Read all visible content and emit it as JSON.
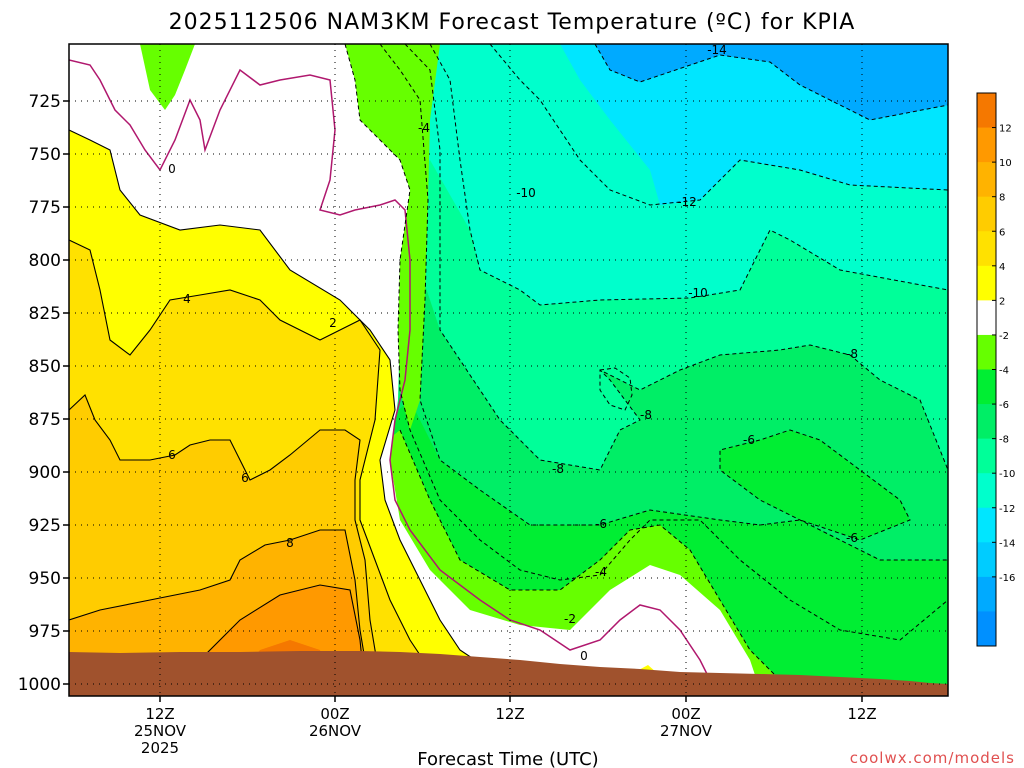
{
  "chart_data": {
    "type": "heatmap",
    "title": "2025112506 NAM3KM Forecast Temperature (ºC) for KPIA",
    "xlabel": "Forecast Time (UTC)",
    "credit": "coolwx.com/models",
    "y_scale": "pressure (hPa), inverted",
    "ylim": [
      1005,
      700
    ],
    "y_ticks": [
      725,
      750,
      775,
      800,
      825,
      850,
      875,
      900,
      925,
      950,
      975,
      1000
    ],
    "x_ticks": [
      {
        "line1": "12Z",
        "line2": "25NOV",
        "line3": "2025"
      },
      {
        "line1": "00Z",
        "line2": "26NOV",
        "line3": ""
      },
      {
        "line1": "12Z",
        "line2": "",
        "line3": ""
      },
      {
        "line1": "00Z",
        "line2": "27NOV",
        "line3": ""
      },
      {
        "line1": "12Z",
        "line2": "",
        "line3": ""
      }
    ],
    "colorbar": {
      "labels": [
        "12",
        "10",
        "8",
        "6",
        "4",
        "2",
        "-2",
        "-4",
        "-6",
        "-8",
        "-10",
        "-12",
        "-14",
        "-16"
      ],
      "colors": [
        "#f57800",
        "#ff9900",
        "#ffb300",
        "#ffcc00",
        "#ffe100",
        "#ffff00",
        "#ffffff",
        "#66ff00",
        "#00ee33",
        "#00ee66",
        "#00ff99",
        "#00ffcc",
        "#00e6ff",
        "#00ccff",
        "#00aaff",
        "#0090ff"
      ]
    },
    "contour_labels": [
      "0",
      "-4",
      "-14",
      "-10",
      "-12",
      "4",
      "2",
      "-10",
      "-8",
      "6",
      "6",
      "-8",
      "-6",
      "-8",
      "8",
      "-6",
      "-6",
      "-4",
      "-2",
      "0"
    ],
    "grid": true,
    "colors": {
      "ground": "#a0522d",
      "freezing_line": "#b0186e"
    }
  }
}
